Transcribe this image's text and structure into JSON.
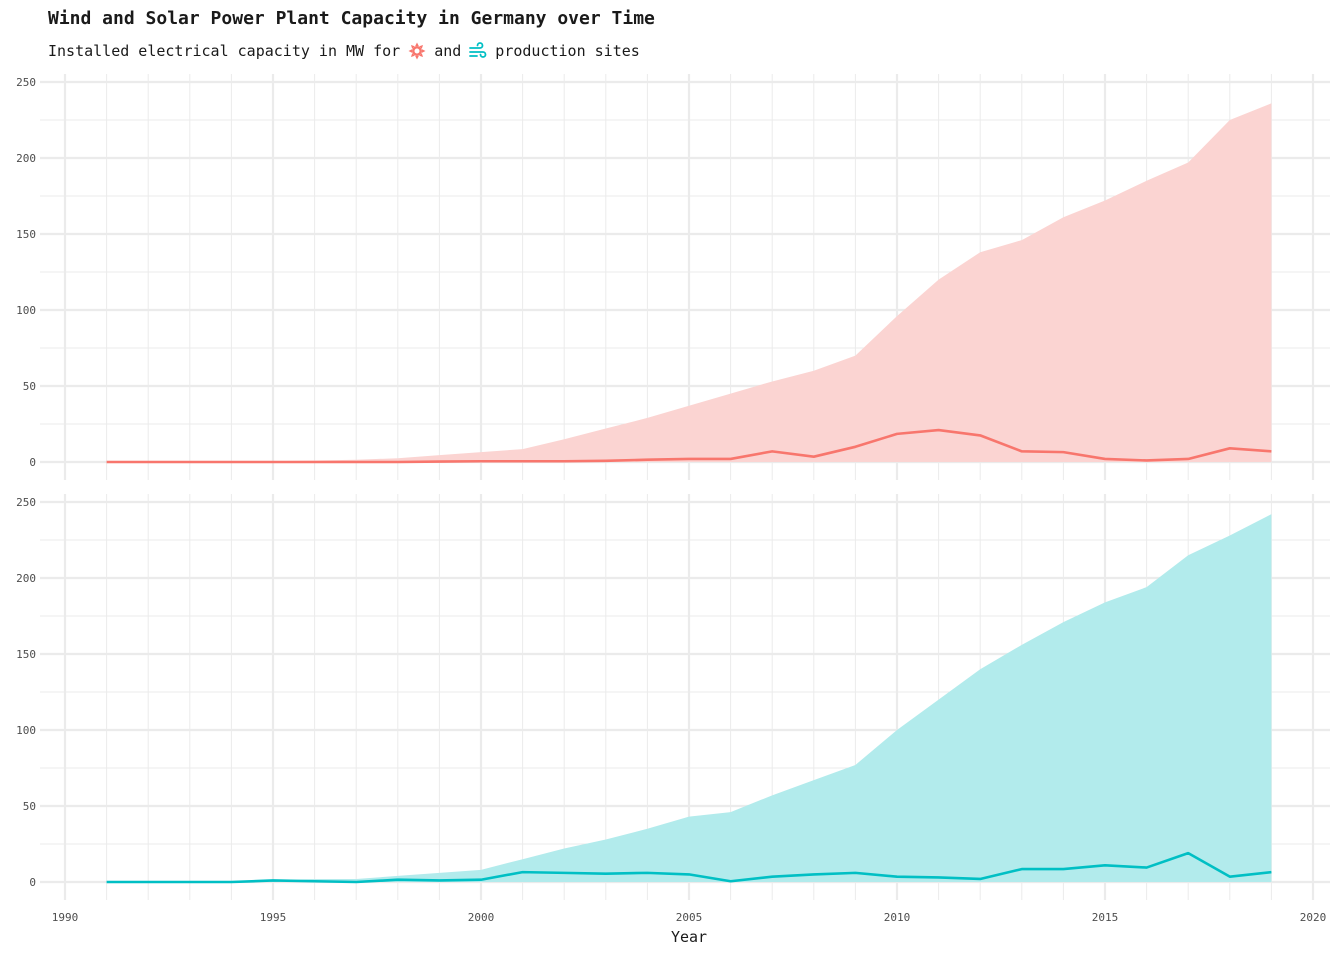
{
  "title": "Wind and Solar Power Plant Capacity in Germany over Time",
  "subtitle": {
    "prefix": "Installed electrical capacity in MW for",
    "icon1": "sun-icon",
    "middle": "and",
    "icon2": "wind-icon",
    "suffix": "production sites"
  },
  "colors": {
    "solar": "#f8766d",
    "wind": "#00bfc4",
    "solar_area": "#fbd4d2",
    "wind_area": "#b2ebec",
    "grid": "#ebebeb"
  },
  "chart_data": [
    {
      "type": "area",
      "panel": "top",
      "series_key": "solar",
      "xlim": [
        1990,
        2020
      ],
      "ylim": [
        0,
        250
      ],
      "y_ticks": [
        0,
        50,
        100,
        150,
        200,
        250
      ],
      "x": [
        1991,
        1992,
        1993,
        1994,
        1995,
        1996,
        1997,
        1998,
        1999,
        2000,
        2001,
        2002,
        2003,
        2004,
        2005,
        2006,
        2007,
        2008,
        2009,
        2010,
        2011,
        2012,
        2013,
        2014,
        2015,
        2016,
        2017,
        2018,
        2019
      ],
      "cumulative": [
        0,
        0,
        0,
        0,
        0.5,
        1,
        1.5,
        2.5,
        4.5,
        6.5,
        8.5,
        15,
        22,
        29,
        37,
        45,
        53,
        60,
        70,
        96,
        120,
        138,
        146,
        161,
        172,
        185,
        197,
        225,
        236
      ],
      "annual": [
        0,
        0,
        0,
        0,
        0,
        0,
        0,
        0,
        0.3,
        0.5,
        0.5,
        0.5,
        0.8,
        1.5,
        2,
        2,
        7,
        3.5,
        10,
        18.5,
        21,
        17.5,
        7,
        6.5,
        2,
        1,
        2,
        9,
        7
      ]
    },
    {
      "type": "area",
      "panel": "bottom",
      "series_key": "wind",
      "xlabel": "Year",
      "xlim": [
        1990,
        2020
      ],
      "ylim": [
        0,
        250
      ],
      "x_ticks": [
        1990,
        1995,
        2000,
        2005,
        2010,
        2015,
        2020
      ],
      "y_ticks": [
        0,
        50,
        100,
        150,
        200,
        250
      ],
      "x": [
        1991,
        1992,
        1993,
        1994,
        1995,
        1996,
        1997,
        1998,
        1999,
        2000,
        2001,
        2002,
        2003,
        2004,
        2005,
        2006,
        2007,
        2008,
        2009,
        2010,
        2011,
        2012,
        2013,
        2014,
        2015,
        2016,
        2017,
        2018,
        2019
      ],
      "cumulative": [
        0,
        0,
        0,
        0,
        1,
        2,
        2,
        4,
        6,
        8,
        15,
        22,
        28,
        35,
        43,
        46,
        57,
        67,
        77,
        100,
        120,
        140,
        156,
        171,
        184,
        194,
        215,
        228,
        242
      ],
      "annual": [
        0,
        0,
        0,
        0,
        1,
        0.5,
        0,
        1.5,
        1,
        1.5,
        6.5,
        6,
        5.5,
        6,
        5,
        0.5,
        3.5,
        5,
        6,
        3.5,
        3,
        2,
        8.5,
        8.5,
        11,
        9.5,
        19,
        3.5,
        6.5
      ]
    }
  ]
}
